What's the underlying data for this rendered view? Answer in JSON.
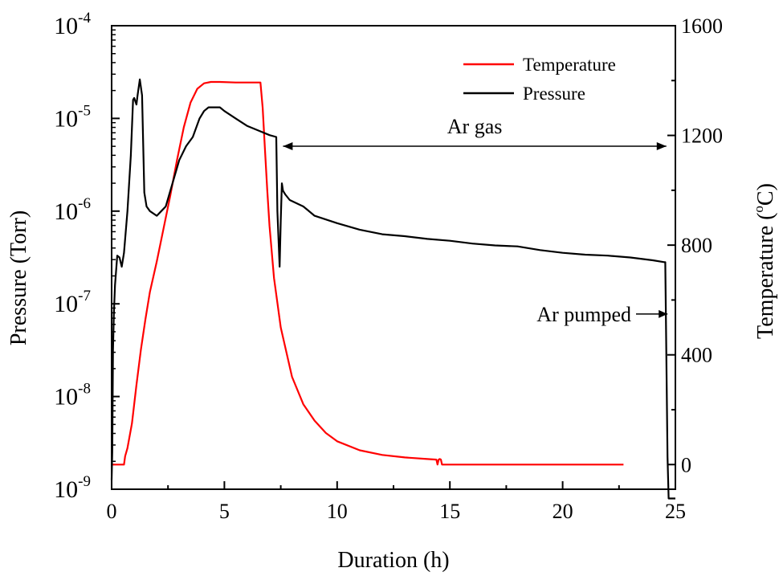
{
  "chart_data": {
    "type": "line",
    "xlabel": "Duration (h)",
    "xlim": [
      0,
      25
    ],
    "x_ticks": [
      {
        "value": 0,
        "label": "0"
      },
      {
        "value": 5,
        "label": "5"
      },
      {
        "value": 10,
        "label": "10"
      },
      {
        "value": 15,
        "label": "15"
      },
      {
        "value": 20,
        "label": "20"
      },
      {
        "value": 25,
        "label": "25"
      }
    ],
    "y_left": {
      "label": "Pressure (Torr)",
      "scale": "log",
      "lim_exp": [
        -9,
        -4
      ],
      "ticks": [
        {
          "exp": -9,
          "base": "10",
          "sup": "-9"
        },
        {
          "exp": -8,
          "base": "10",
          "sup": "-8"
        },
        {
          "exp": -7,
          "base": "10",
          "sup": "-7"
        },
        {
          "exp": -6,
          "base": "10",
          "sup": "-6"
        },
        {
          "exp": -5,
          "base": "10",
          "sup": "-5"
        },
        {
          "exp": -4,
          "base": "10",
          "sup": "-4"
        }
      ]
    },
    "y_right": {
      "label_pre": "Temperature (",
      "label_sup": "o",
      "label_post": "C)",
      "lim": [
        -90,
        1600
      ],
      "ticks": [
        {
          "value": 0,
          "label": "0"
        },
        {
          "value": 400,
          "label": "400"
        },
        {
          "value": 800,
          "label": "800"
        },
        {
          "value": 1200,
          "label": "1200"
        },
        {
          "value": 1600,
          "label": "1600"
        }
      ]
    },
    "series": [
      {
        "name": "Temperature",
        "color": "#ff0000",
        "axis": "right",
        "x": [
          0,
          0.55,
          0.6,
          0.7,
          0.9,
          1.1,
          1.3,
          1.5,
          1.7,
          2.0,
          2.3,
          2.6,
          2.9,
          3.2,
          3.5,
          3.8,
          4.1,
          4.4,
          4.8,
          5.5,
          6.2,
          6.6,
          6.7,
          6.8,
          6.9,
          7.0,
          7.2,
          7.5,
          8.0,
          8.5,
          9.0,
          9.5,
          10,
          11,
          12,
          13,
          14,
          14.4,
          14.45,
          14.5,
          14.55,
          14.6,
          14.65,
          14.7,
          15,
          20,
          22.7
        ],
        "values": [
          0,
          0,
          30,
          60,
          150,
          290,
          420,
          530,
          630,
          740,
          860,
          980,
          1110,
          1230,
          1320,
          1370,
          1390,
          1395,
          1395,
          1393,
          1393,
          1393,
          1300,
          1150,
          1000,
          870,
          680,
          500,
          320,
          220,
          160,
          115,
          85,
          52,
          35,
          26,
          20,
          18,
          0,
          18,
          20,
          18,
          0,
          0,
          0,
          0,
          0
        ]
      },
      {
        "name": "Pressure",
        "color": "#000000",
        "axis": "left",
        "x": [
          0,
          0.03,
          0.06,
          0.1,
          0.15,
          0.25,
          0.35,
          0.45,
          0.55,
          0.7,
          0.85,
          0.95,
          1.0,
          1.1,
          1.15,
          1.25,
          1.35,
          1.45,
          1.55,
          1.7,
          2.0,
          2.2,
          2.4,
          2.7,
          3.0,
          3.3,
          3.6,
          3.9,
          4.1,
          4.3,
          4.5,
          4.8,
          5.0,
          5.5,
          6.0,
          6.5,
          7.0,
          7.3,
          7.35,
          7.45,
          7.5,
          7.55,
          7.6,
          7.7,
          7.9,
          8.5,
          9.0,
          10,
          11,
          12,
          13,
          14,
          15,
          16,
          17,
          18,
          19,
          20,
          21,
          22,
          23,
          24,
          24.5,
          24.55,
          24.65,
          24.7,
          25
        ],
        "values_exp": [
          -8.9,
          -8.6,
          -7.5,
          -7.1,
          -6.8,
          -6.48,
          -6.5,
          -6.6,
          -6.45,
          -6.0,
          -5.4,
          -4.8,
          -4.78,
          -4.85,
          -4.75,
          -4.58,
          -4.75,
          -5.8,
          -5.95,
          -6.0,
          -6.05,
          -6.0,
          -5.95,
          -5.7,
          -5.45,
          -5.3,
          -5.2,
          -5.0,
          -4.92,
          -4.88,
          -4.88,
          -4.88,
          -4.92,
          -5.0,
          -5.08,
          -5.13,
          -5.18,
          -5.2,
          -6.0,
          -6.6,
          -6.1,
          -5.7,
          -5.78,
          -5.82,
          -5.88,
          -5.95,
          -6.05,
          -6.13,
          -6.2,
          -6.25,
          -6.27,
          -6.3,
          -6.32,
          -6.35,
          -6.37,
          -6.38,
          -6.42,
          -6.45,
          -6.47,
          -6.48,
          -6.5,
          -6.53,
          -6.55,
          -6.55,
          -8.65,
          -9.1,
          -9.1
        ]
      }
    ],
    "legend": {
      "position": "top-right",
      "items": [
        {
          "name": "Temperature",
          "color": "#ff0000"
        },
        {
          "name": "Pressure",
          "color": "#000000"
        }
      ]
    },
    "annotations": {
      "ar_gas": {
        "text": "Ar gas",
        "x_start": 7.6,
        "x_end": 24.6,
        "y_exp": -5.3
      },
      "ar_pumped": {
        "text": "Ar pumped",
        "x_arrow_end": 24.65,
        "y_exp": -7.11
      }
    }
  }
}
